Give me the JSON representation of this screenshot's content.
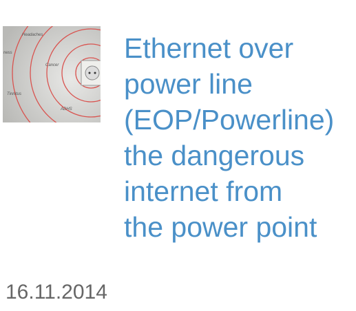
{
  "image": {
    "labels": [
      "Headaches",
      "ness",
      "Cancer",
      "Tinnitus",
      "ADHS"
    ]
  },
  "article": {
    "title_lines": [
      "Ethernet over",
      "power line",
      "(EOP/Powerline)",
      "the dangerous",
      "internet from",
      "the power point"
    ],
    "date": "16.11.2014"
  }
}
